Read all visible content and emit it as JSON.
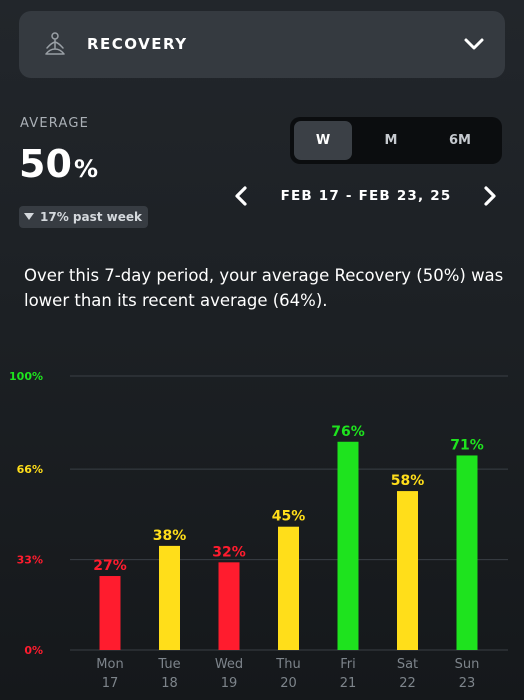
{
  "header": {
    "title": "RECOVERY",
    "icon": "meditation-icon",
    "expand_icon": "chevron-down-icon"
  },
  "average": {
    "label": "AVERAGE",
    "value": "50",
    "unit": "%",
    "trend_text": "17% past week",
    "trend_direction": "down"
  },
  "period_selector": {
    "options": [
      "W",
      "M",
      "6M"
    ],
    "selected": "W"
  },
  "date_nav": {
    "range": "FEB 17 - FEB 23, 25",
    "prev_icon": "chevron-left-icon",
    "next_icon": "chevron-right-icon"
  },
  "summary": "Over this 7-day period, your average Recovery (50%) was lower than its recent average (64%).",
  "colors": {
    "red": "#ff1c2e",
    "yellow": "#ffde1a",
    "green": "#1ee31e"
  },
  "chart_data": {
    "type": "bar",
    "categories": [
      "Mon 17",
      "Tue 18",
      "Wed 19",
      "Thu 20",
      "Fri 21",
      "Sat 22",
      "Sun 23"
    ],
    "days": [
      {
        "day": "Mon",
        "date": "17",
        "value": 27,
        "label": "27%",
        "color": "#ff1c2e"
      },
      {
        "day": "Tue",
        "date": "18",
        "value": 38,
        "label": "38%",
        "color": "#ffde1a"
      },
      {
        "day": "Wed",
        "date": "19",
        "value": 32,
        "label": "32%",
        "color": "#ff1c2e"
      },
      {
        "day": "Thu",
        "date": "20",
        "value": 45,
        "label": "45%",
        "color": "#ffde1a"
      },
      {
        "day": "Fri",
        "date": "21",
        "value": 76,
        "label": "76%",
        "color": "#1ee31e"
      },
      {
        "day": "Sat",
        "date": "22",
        "value": 58,
        "label": "58%",
        "color": "#ffde1a"
      },
      {
        "day": "Sun",
        "date": "23",
        "value": 71,
        "label": "71%",
        "color": "#1ee31e"
      }
    ],
    "values": [
      27,
      38,
      32,
      45,
      76,
      58,
      71
    ],
    "ylim": [
      0,
      100
    ],
    "yticks": [
      {
        "value": 100,
        "label": "100%",
        "color": "#1ee31e"
      },
      {
        "value": 66,
        "label": "66%",
        "color": "#ffde1a"
      },
      {
        "value": 33,
        "label": "33%",
        "color": "#ff1c2e"
      },
      {
        "value": 0,
        "label": "0%",
        "color": "#ff1c2e"
      }
    ],
    "grid": true
  }
}
